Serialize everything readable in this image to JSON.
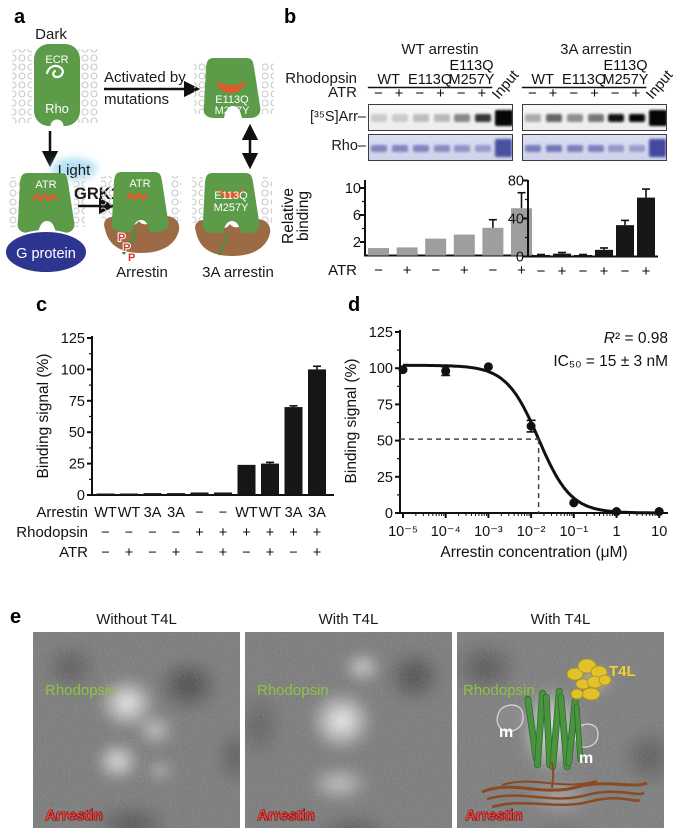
{
  "panel_labels": {
    "a": "a",
    "b": "b",
    "c": "c",
    "d": "d",
    "e": "e"
  },
  "panel_a": {
    "dark": "Dark",
    "ecr": "ECR",
    "rho": "Rho",
    "light": "Light",
    "activated_line1": "Activated by",
    "activated_line2": "mutations",
    "mutant_line1": "E113Q",
    "mutant_line2": "M257Y",
    "atr": "ATR",
    "grk1": "GRK1",
    "g_protein": "G protein",
    "phosphates": [
      "P",
      "P",
      "P"
    ],
    "arrestin": "Arrestin",
    "three_a_arrestin": "3A arrestin",
    "colors": {
      "rhodopsin": "#5c9c49",
      "arrestin": "#9c6a45",
      "g_protein": "#2d3590",
      "retinal": "#e2592b",
      "light_glow": "#b5e0f5",
      "phosphate": "#e03339",
      "tail_green": "#4e8f42"
    }
  },
  "panel_b": {
    "titles": [
      "WT arrestin",
      "3A arrestin"
    ],
    "rhodopsin_label": "Rhodopsin",
    "atr_label": "ATR",
    "group_lines": [
      [
        "",
        "WT"
      ],
      [
        "",
        "E113Q"
      ],
      [
        "E113Q",
        "M257Y"
      ]
    ],
    "input_label": "Input",
    "atr_signs": [
      "−",
      "+",
      "−",
      "+",
      "−",
      "+"
    ],
    "row_labels": [
      "[³⁵S]Arr–",
      "Rho–"
    ],
    "gels": [
      {
        "arr_bands": [
          0.16,
          0.16,
          0.22,
          0.24,
          0.45,
          0.8,
          1.0
        ],
        "rho_bands": [
          0.55,
          0.55,
          0.55,
          0.5,
          0.45,
          0.4,
          0.9
        ]
      },
      {
        "arr_bands": [
          0.3,
          0.6,
          0.42,
          0.52,
          0.95,
          1.0,
          1.0
        ],
        "rho_bands": [
          0.6,
          0.65,
          0.58,
          0.58,
          0.42,
          0.38,
          0.95
        ]
      }
    ]
  },
  "chart_data": [
    {
      "id": "b-wt",
      "type": "bar",
      "panel": "b",
      "title": "WT arrestin",
      "ylabel_lines": [
        "Relative",
        "binding"
      ],
      "yticks": [
        2,
        6,
        10
      ],
      "ylim": [
        0,
        10.8
      ],
      "categories": [
        "−",
        "+",
        "−",
        "+",
        "−",
        "+"
      ],
      "row_label": "ATR",
      "values": [
        1.1,
        1.2,
        2.5,
        3.1,
        4.1,
        7.0
      ],
      "errors": [
        0.15,
        0.15,
        0.3,
        0.2,
        1.2,
        2.3
      ],
      "bar_color": "#9e9e9e"
    },
    {
      "id": "b-3a",
      "type": "bar",
      "panel": "b",
      "title": "3A arrestin",
      "yticks": [
        0,
        40,
        80
      ],
      "ylim": [
        0,
        83
      ],
      "categories": [
        "−",
        "+",
        "−",
        "+",
        "−",
        "+"
      ],
      "values": [
        1,
        3,
        1,
        7,
        33,
        62
      ],
      "errors": [
        0.5,
        1.2,
        0.5,
        2,
        5,
        9
      ],
      "bar_color": "#161616"
    },
    {
      "id": "c",
      "type": "bar",
      "panel": "c",
      "ylabel": "Binding signal (%)",
      "yticks": [
        0,
        25,
        50,
        75,
        100,
        125
      ],
      "ylim": [
        0,
        130
      ],
      "values": [
        1,
        1,
        1.5,
        1.5,
        2,
        2,
        24,
        25,
        70,
        100
      ],
      "errors": [
        0,
        0,
        0,
        0,
        0,
        0,
        0,
        1,
        1,
        2.5
      ],
      "bar_color": "#161616",
      "cat_rows": [
        {
          "label": "Arrestin",
          "cats": [
            "WT",
            "WT",
            "3A",
            "3A",
            "−",
            "−",
            "WT",
            "WT",
            "3A",
            "3A"
          ]
        },
        {
          "label": "Rhodopsin",
          "cats": [
            "−",
            "−",
            "−",
            "−",
            "+",
            "+",
            "+",
            "+",
            "+",
            "+"
          ]
        },
        {
          "label": "ATR",
          "cats": [
            "−",
            "+",
            "−",
            "+",
            "−",
            "+",
            "−",
            "+",
            "−",
            "+"
          ]
        }
      ]
    },
    {
      "id": "d",
      "type": "dose-response",
      "panel": "d",
      "xlabel": "Arrestin concentration (μM)",
      "ylabel": "Binding signal (%)",
      "yticks": [
        0,
        25,
        50,
        75,
        100,
        125
      ],
      "ylim": [
        0,
        130
      ],
      "xtick_labels": [
        "10⁻⁵",
        "10⁻⁴",
        "10⁻³",
        "10⁻²",
        "10⁻¹",
        "1",
        "10"
      ],
      "xtick_values": [
        1e-05,
        0.0001,
        0.001,
        0.01,
        0.1,
        1,
        10
      ],
      "points_x": [
        1e-05,
        0.0001,
        0.001,
        0.01,
        0.1,
        1,
        10
      ],
      "points_y": [
        99,
        98,
        101,
        60,
        7,
        1,
        1
      ],
      "points_err": [
        0,
        3,
        0,
        4,
        0,
        0,
        0
      ],
      "fit": {
        "top": 102,
        "bottom": 0,
        "ic50_um": 0.015,
        "hill": 1.15
      },
      "dashed_y": 51,
      "r2_text": "R² = 0.98",
      "ic50_text": "IC₅₀ = 15 ± 3 nM"
    }
  ],
  "panel_e": {
    "titles": [
      "Without T4L",
      "With T4L",
      "With T4L"
    ],
    "rhodopsin": "Rhodopsin",
    "arrestin": "Arrestin",
    "t4l": "T4L",
    "m": "m",
    "colors": {
      "rhodopsin_text": "#8bc63f",
      "arrestin_text": "#e8413d",
      "t4l_text": "#f2d12f"
    }
  }
}
